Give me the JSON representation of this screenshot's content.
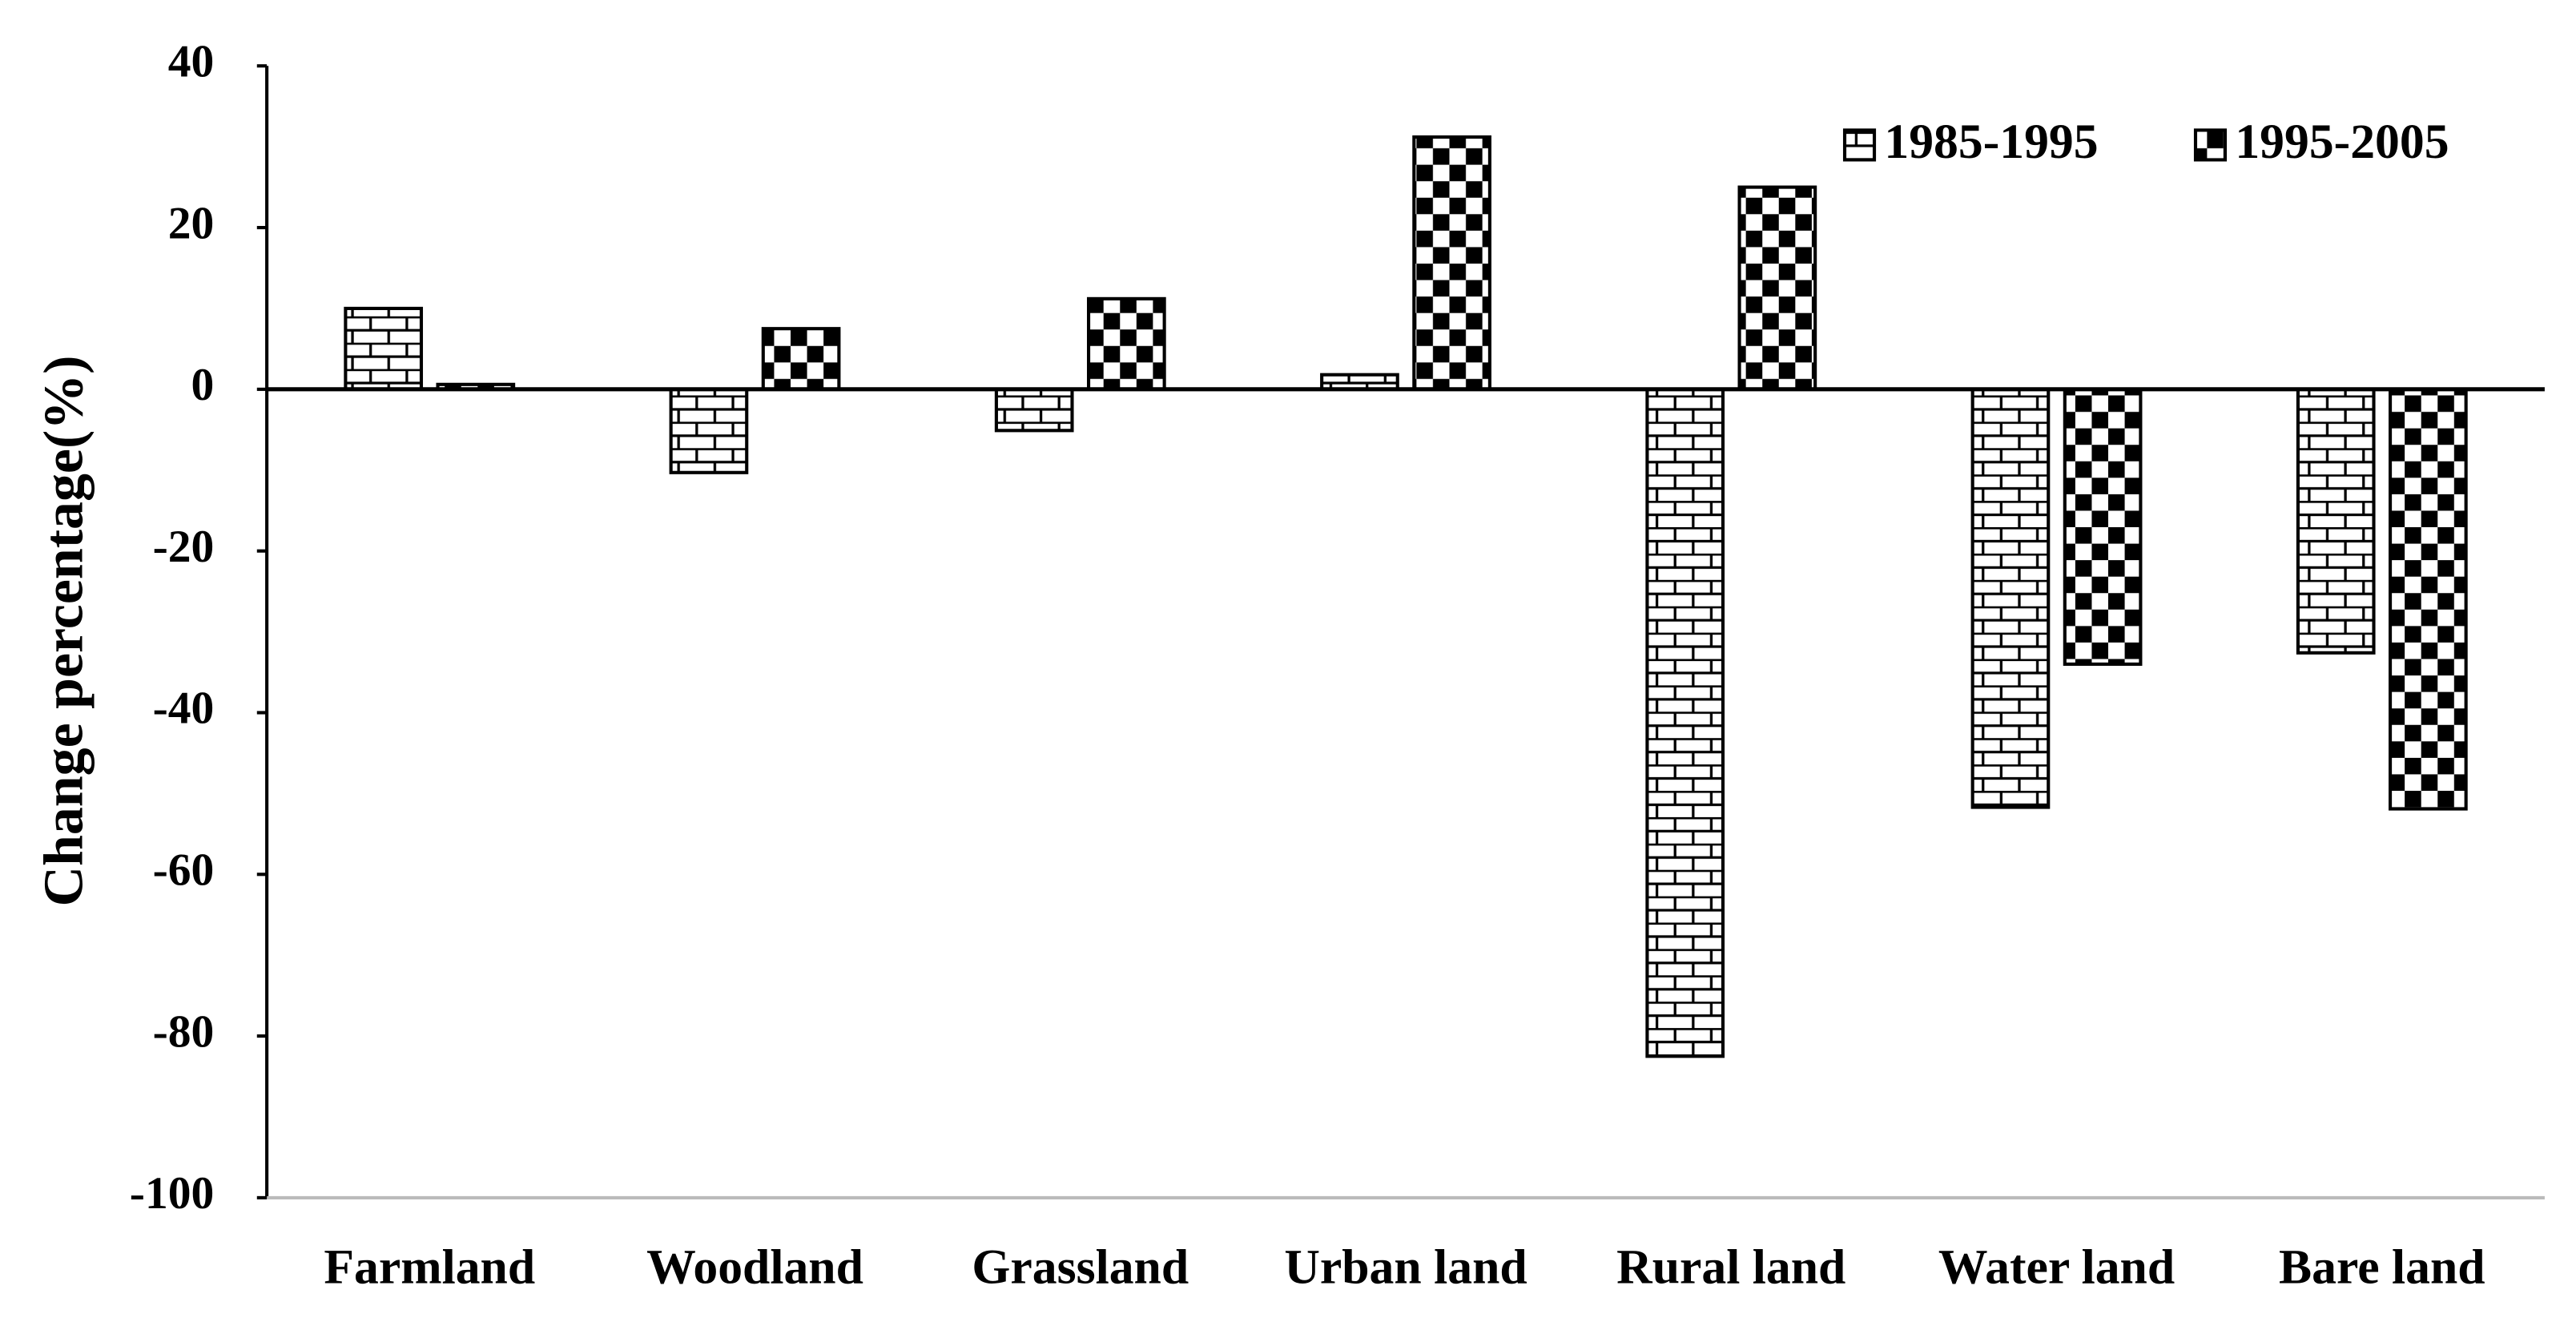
{
  "chart_data": {
    "type": "bar",
    "y_label": "Change percentage(%)",
    "categories": [
      "Farmland",
      "Woodland",
      "Grassland",
      "Urban land",
      "Rural land",
      "Water land",
      "Bare land"
    ],
    "series": [
      {
        "name": "1985-1995",
        "color": "#000000",
        "pattern": "brick",
        "values": [
          10,
          -10.3,
          -5.1,
          1.8,
          -82.5,
          -51.7,
          -32.6
        ]
      },
      {
        "name": "1995-2005",
        "color": "#000000",
        "pattern": "checker",
        "values": [
          0.6,
          7.5,
          11.2,
          31.2,
          25,
          -34,
          -51.9
        ]
      }
    ],
    "ylim": [
      -100,
      40
    ],
    "yticks": [
      -100,
      -80,
      -60,
      -40,
      -20,
      0,
      20,
      40
    ],
    "legend": "top-right",
    "grid": false
  }
}
